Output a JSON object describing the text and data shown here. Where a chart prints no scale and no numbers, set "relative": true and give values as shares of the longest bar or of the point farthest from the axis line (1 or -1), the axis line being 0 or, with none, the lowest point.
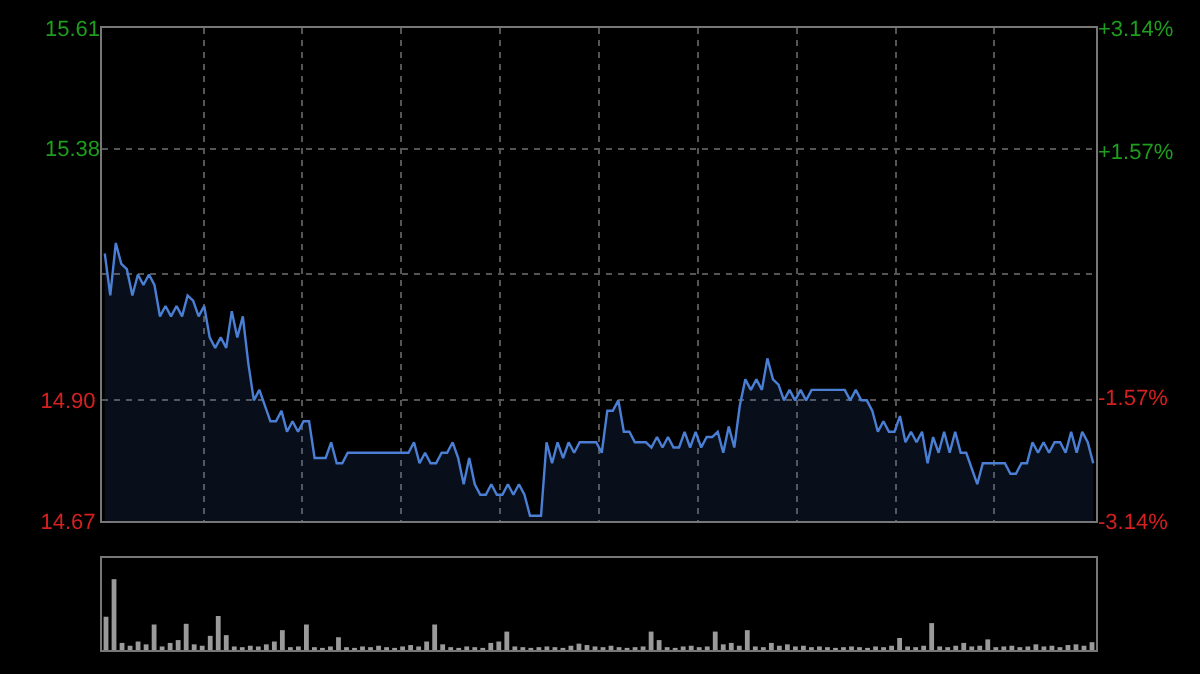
{
  "chart_data": [
    {
      "type": "area",
      "categories": [
        null,
        null,
        null,
        null,
        null,
        null,
        null,
        null,
        null,
        null,
        null,
        null,
        null,
        null,
        null,
        null,
        null,
        null,
        null,
        null,
        null,
        null,
        null,
        null,
        null,
        null,
        null,
        null,
        null,
        null,
        null,
        null,
        null,
        null,
        null,
        null,
        null,
        null,
        null,
        null,
        null,
        null,
        null,
        null,
        null,
        null,
        null,
        null,
        null,
        null,
        null,
        null,
        null,
        null,
        null,
        null,
        null,
        null,
        null,
        null,
        null,
        null,
        null,
        null,
        null,
        null,
        null,
        null,
        null,
        null,
        null,
        null,
        null,
        null,
        null,
        null,
        null,
        null,
        null,
        null,
        null,
        null,
        null,
        null,
        null,
        null,
        null,
        null,
        null,
        null,
        null,
        null,
        null,
        null,
        null,
        null,
        null,
        null,
        null,
        null,
        null,
        null,
        null,
        null,
        null,
        null,
        null,
        null,
        null,
        null,
        null,
        null,
        null,
        null,
        null,
        null,
        null,
        null,
        null,
        null,
        null,
        null,
        null,
        null,
        null,
        null,
        null,
        null,
        null,
        null,
        null,
        null,
        null,
        null,
        null,
        null,
        null,
        null,
        null,
        null,
        null,
        null,
        null,
        null,
        null,
        null,
        null,
        null,
        null,
        null,
        null,
        null,
        null,
        null,
        null,
        null,
        null,
        null,
        null,
        null,
        null,
        null,
        null,
        null,
        null,
        null,
        null,
        null,
        null,
        null,
        null,
        null,
        null,
        null,
        null,
        null,
        null,
        null,
        null,
        null
      ],
      "series": [
        {
          "color": "#4a7fd4",
          "values": [
            15.18,
            15.1,
            15.2,
            15.16,
            15.15,
            15.1,
            15.14,
            15.12,
            15.14,
            15.12,
            15.06,
            15.08,
            15.06,
            15.08,
            15.06,
            15.1,
            15.09,
            15.06,
            15.08,
            15.02,
            15.0,
            15.02,
            15.0,
            15.07,
            15.02,
            15.06,
            14.97,
            14.9,
            14.92,
            14.89,
            14.86,
            14.86,
            14.88,
            14.84,
            14.86,
            14.84,
            14.86,
            14.86,
            14.79,
            14.79,
            14.79,
            14.82,
            14.78,
            14.78,
            14.8,
            14.8,
            14.8,
            14.8,
            14.8,
            14.8,
            14.8,
            14.8,
            14.8,
            14.8,
            14.8,
            14.8,
            14.82,
            14.78,
            14.8,
            14.78,
            14.78,
            14.8,
            14.8,
            14.82,
            14.79,
            14.74,
            14.79,
            14.74,
            14.72,
            14.72,
            14.74,
            14.72,
            14.72,
            14.74,
            14.72,
            14.74,
            14.72,
            14.68,
            14.68,
            14.68,
            14.82,
            14.78,
            14.82,
            14.79,
            14.82,
            14.8,
            14.82,
            14.82,
            14.82,
            14.82,
            14.8,
            14.88,
            14.88,
            14.9,
            14.84,
            14.84,
            14.82,
            14.82,
            14.82,
            14.81,
            14.83,
            14.81,
            14.83,
            14.81,
            14.81,
            14.84,
            14.81,
            14.84,
            14.81,
            14.83,
            14.83,
            14.84,
            14.8,
            14.85,
            14.81,
            14.89,
            14.94,
            14.92,
            14.94,
            14.92,
            14.98,
            14.94,
            14.93,
            14.9,
            14.92,
            14.9,
            14.92,
            14.9,
            14.92,
            14.92,
            14.92,
            14.92,
            14.92,
            14.92,
            14.92,
            14.9,
            14.92,
            14.9,
            14.9,
            14.88,
            14.84,
            14.86,
            14.84,
            14.84,
            14.87,
            14.82,
            14.84,
            14.82,
            14.84,
            14.78,
            14.83,
            14.8,
            14.84,
            14.8,
            14.84,
            14.8,
            14.8,
            14.77,
            14.74,
            14.78,
            14.78,
            14.78,
            14.78,
            14.78,
            14.76,
            14.76,
            14.78,
            14.78,
            14.82,
            14.8,
            14.82,
            14.8,
            14.82,
            14.82,
            14.8,
            14.84,
            14.8,
            14.84,
            14.82,
            14.78
          ]
        }
      ],
      "ylim": [
        14.67,
        15.61
      ],
      "yticks": [
        14.67,
        {
          "value": 14.9,
          "label": "14.90"
        },
        {
          "value": 15.14,
          "label": null
        },
        15.38,
        15.61
      ],
      "y2lim": [
        -3.14,
        3.14
      ],
      "y2ticks": [
        {
          "value": -3.14,
          "label": "-3.14%"
        },
        {
          "value": -1.57,
          "label": "-1.57%"
        },
        {
          "value": 1.57,
          "label": "+1.57%"
        },
        {
          "value": 3.14,
          "label": "+3.14%"
        }
      ],
      "tick_labels": "y",
      "grid": true
    },
    {
      "type": "bar",
      "relative": true,
      "color": "#9a9a9a",
      "categories": [
        null,
        null,
        null,
        null,
        null,
        null,
        null,
        null,
        null,
        null,
        null,
        null,
        null,
        null,
        null,
        null,
        null,
        null,
        null,
        null,
        null,
        null,
        null,
        null,
        null,
        null,
        null,
        null,
        null,
        null,
        null,
        null,
        null,
        null,
        null,
        null,
        null,
        null,
        null,
        null,
        null,
        null,
        null,
        null,
        null,
        null,
        null,
        null,
        null,
        null,
        null,
        null,
        null,
        null,
        null,
        null,
        null,
        null,
        null,
        null,
        null,
        null,
        null,
        null,
        null,
        null,
        null,
        null,
        null,
        null,
        null,
        null,
        null,
        null,
        null,
        null,
        null,
        null,
        null,
        null,
        null,
        null,
        null,
        null,
        null,
        null,
        null,
        null,
        null,
        null,
        null,
        null,
        null,
        null,
        null,
        null,
        null,
        null,
        null,
        null,
        null,
        null,
        null,
        null,
        null,
        null,
        null,
        null,
        null,
        null,
        null,
        null,
        null,
        null,
        null,
        null,
        null,
        null,
        null,
        null,
        null,
        null,
        null,
        null
      ],
      "values": [
        0.47,
        1.0,
        0.1,
        0.06,
        0.12,
        0.08,
        0.36,
        0.05,
        0.1,
        0.14,
        0.37,
        0.08,
        0.06,
        0.2,
        0.48,
        0.21,
        0.05,
        0.04,
        0.06,
        0.05,
        0.08,
        0.12,
        0.28,
        0.04,
        0.05,
        0.36,
        0.04,
        0.03,
        0.05,
        0.18,
        0.04,
        0.03,
        0.05,
        0.04,
        0.06,
        0.04,
        0.03,
        0.05,
        0.07,
        0.05,
        0.12,
        0.36,
        0.08,
        0.04,
        0.03,
        0.05,
        0.04,
        0.03,
        0.1,
        0.12,
        0.26,
        0.05,
        0.04,
        0.03,
        0.04,
        0.05,
        0.04,
        0.03,
        0.06,
        0.09,
        0.07,
        0.05,
        0.04,
        0.06,
        0.04,
        0.03,
        0.04,
        0.05,
        0.26,
        0.14,
        0.04,
        0.03,
        0.05,
        0.06,
        0.04,
        0.05,
        0.26,
        0.08,
        0.1,
        0.06,
        0.28,
        0.05,
        0.04,
        0.1,
        0.06,
        0.08,
        0.05,
        0.06,
        0.04,
        0.05,
        0.04,
        0.03,
        0.04,
        0.05,
        0.04,
        0.03,
        0.05,
        0.04,
        0.06,
        0.17,
        0.05,
        0.04,
        0.06,
        0.38,
        0.05,
        0.04,
        0.06,
        0.1,
        0.05,
        0.06,
        0.15,
        0.04,
        0.05,
        0.06,
        0.04,
        0.05,
        0.08,
        0.05,
        0.06,
        0.04,
        0.07,
        0.08,
        0.06,
        0.11
      ]
    }
  ]
}
